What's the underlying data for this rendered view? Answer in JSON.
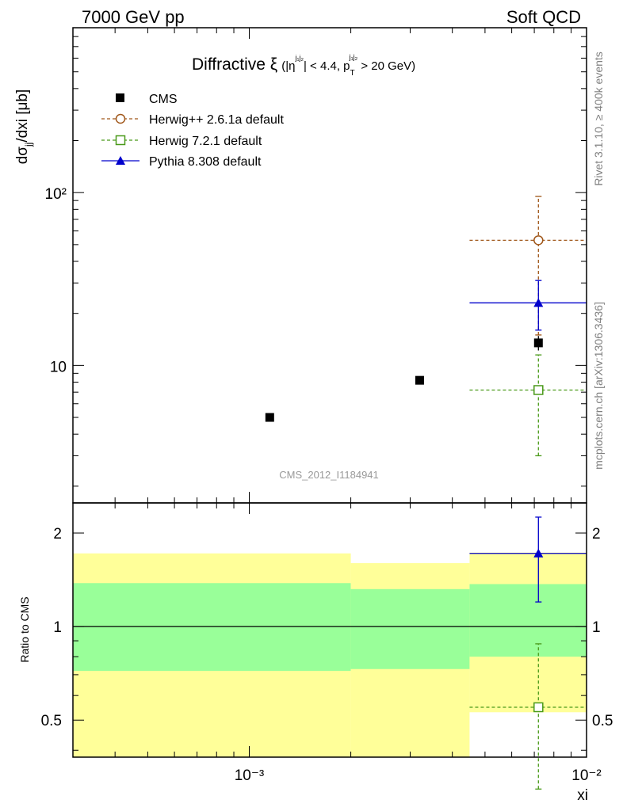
{
  "header": {
    "left": "7000 GeV pp",
    "right": "Soft QCD"
  },
  "side_labels": {
    "rivet": "Rivet 3.1.10, ≥ 400k events",
    "mcplots": "mcplots.cern.ch [arXiv:1306.3436]"
  },
  "analysis_id": "CMS_2012_I1184941",
  "title": {
    "main": "Diffractive ξ",
    "cut_open": "(|η",
    "cut_sup1": "j₁j₂",
    "cut_mid": "| < 4.4, p",
    "cut_sub": "T",
    "cut_sup2": "j₁j₂",
    "cut_close": " > 20 GeV)"
  },
  "colors": {
    "cms": "#000000",
    "herwigpp": "#a0571a",
    "herwig7": "#4a9a1a",
    "pythia": "#0000cc",
    "band_inner": "#99ff99",
    "band_outer": "#ffff99"
  },
  "chart_data": [
    {
      "type": "scatter",
      "panel": "main",
      "xlabel": "xi",
      "ylabel": "dσjj/dxi [μb]",
      "xscale": "log",
      "yscale": "log",
      "xlim": [
        0.0003,
        0.01
      ],
      "ylim": [
        1.6,
        900
      ],
      "ytick_labels": [
        "10",
        "10²"
      ],
      "legend_position": "top-left",
      "series": [
        {
          "name": "CMS",
          "marker": "filled-square",
          "points": [
            {
              "x": 0.00115,
              "y": 5.0
            },
            {
              "x": 0.0032,
              "y": 8.2
            },
            {
              "x": 0.0072,
              "y": 13.5,
              "yerr": [
                12.2,
                14.8
              ]
            }
          ]
        },
        {
          "name": "Herwig++ 2.6.1a default",
          "marker": "open-circle",
          "line": "dashed",
          "points": [
            {
              "x": 0.0072,
              "y": 53,
              "xerr": [
                0.0045,
                0.01
              ],
              "yerr": [
                15,
                95
              ]
            }
          ]
        },
        {
          "name": "Herwig 7.2.1 default",
          "marker": "open-square",
          "line": "dashed",
          "points": [
            {
              "x": 0.0072,
              "y": 7.2,
              "xerr": [
                0.0045,
                0.01
              ],
              "yerr": [
                3.0,
                11.5
              ]
            }
          ]
        },
        {
          "name": "Pythia 8.308 default",
          "marker": "filled-triangle",
          "line": "solid",
          "points": [
            {
              "x": 0.0072,
              "y": 23,
              "xerr": [
                0.0045,
                0.01
              ],
              "yerr": [
                16,
                31
              ]
            }
          ]
        }
      ]
    },
    {
      "type": "scatter",
      "panel": "ratio",
      "xlabel": "xi",
      "ylabel": "Ratio to CMS",
      "xscale": "log",
      "yscale": "log",
      "xlim": [
        0.0003,
        0.01
      ],
      "ylim": [
        0.38,
        2.5
      ],
      "ytick_labels": [
        "0.5",
        "1",
        "2"
      ],
      "xtick_labels": [
        "10⁻³",
        "10⁻²"
      ],
      "bands": [
        {
          "x0": 0.0003,
          "x1": 0.002,
          "inner": [
            0.72,
            1.38
          ],
          "outer": [
            0.38,
            1.72
          ]
        },
        {
          "x0": 0.002,
          "x1": 0.0045,
          "inner": [
            0.73,
            1.32
          ],
          "outer": [
            0.38,
            1.6
          ]
        },
        {
          "x0": 0.0045,
          "x1": 0.01,
          "inner": [
            0.8,
            1.37
          ],
          "outer": [
            0.53,
            1.73
          ]
        }
      ],
      "series": [
        {
          "name": "Herwig 7.2.1 default",
          "points": [
            {
              "x": 0.0072,
              "y": 0.55,
              "xerr": [
                0.0045,
                0.01
              ],
              "yerr": [
                0.3,
                0.88
              ]
            }
          ]
        },
        {
          "name": "Pythia 8.308 default",
          "points": [
            {
              "x": 0.0072,
              "y": 1.72,
              "xerr": [
                0.0045,
                0.01
              ],
              "yerr": [
                1.2,
                2.25
              ]
            }
          ]
        }
      ]
    }
  ]
}
